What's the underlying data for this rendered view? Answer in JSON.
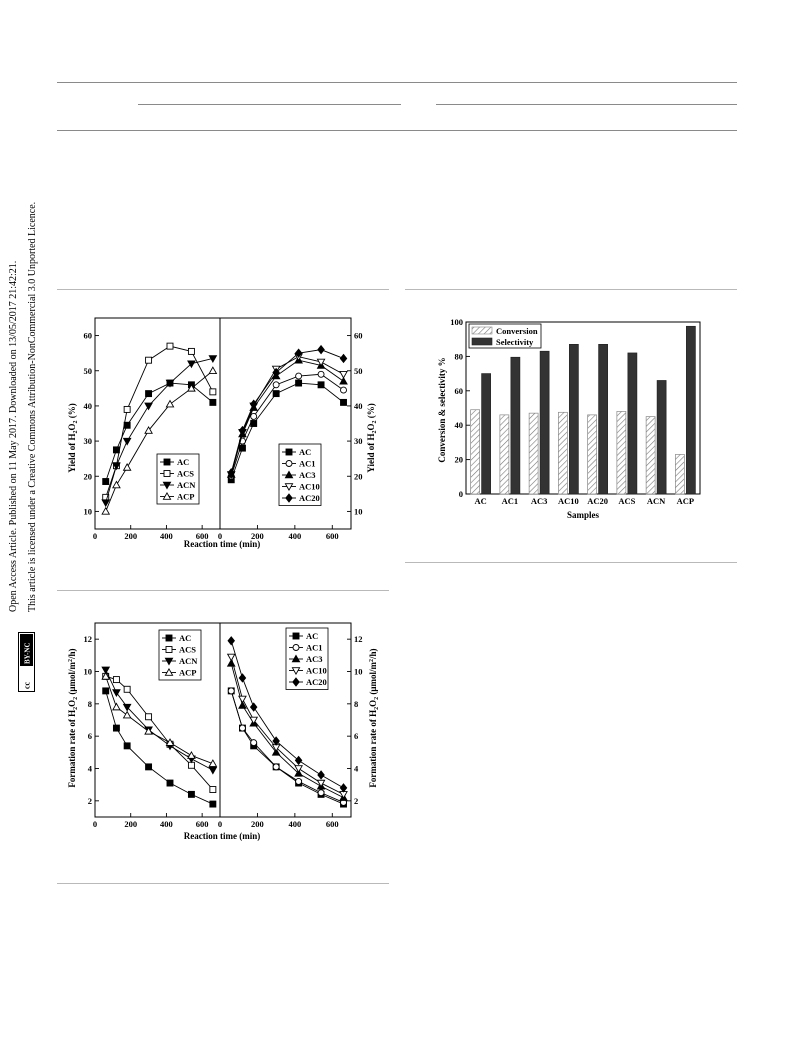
{
  "sidebar": {
    "line1": "Open Access Article. Published on 11 May 2017. Downloaded on 13/05/2017 21:42:21.",
    "line2": "This article is licensed under a Creative Commons Attribution-NonCommercial 3.0 Unported Licence.",
    "badge_cc": "cc",
    "badge_by_nc": "BY-NC"
  },
  "chart_data": [
    {
      "type": "line",
      "id": "yield-left",
      "xlabel": "Reaction time (min)",
      "ylabel": "Yield of H2O2 (%)",
      "xlim": [
        0,
        700
      ],
      "ylim": [
        5,
        65
      ],
      "xticks": [
        0,
        200,
        400,
        600
      ],
      "yticks": [
        10,
        20,
        30,
        40,
        50,
        60
      ],
      "legend_position": "bottom-right",
      "x": [
        60,
        120,
        180,
        300,
        420,
        540,
        660
      ],
      "series": [
        {
          "name": "AC",
          "marker": "square-filled",
          "values": [
            18.5,
            27.5,
            34.5,
            43.5,
            46.5,
            46,
            41
          ]
        },
        {
          "name": "ACS",
          "marker": "square-open",
          "values": [
            14,
            23,
            39,
            53,
            57,
            55.5,
            44
          ]
        },
        {
          "name": "ACN",
          "marker": "tri-down-filled",
          "values": [
            12.5,
            23,
            30,
            40,
            46.5,
            52,
            53.5
          ]
        },
        {
          "name": "ACP",
          "marker": "tri-up-open",
          "values": [
            10,
            17.5,
            22.5,
            33,
            40.5,
            45,
            50
          ]
        }
      ]
    },
    {
      "type": "line",
      "id": "yield-right",
      "xlabel": "Reaction time (min)",
      "ylabel": "Yield of H2O2 (%)",
      "xlim": [
        0,
        700
      ],
      "ylim": [
        5,
        65
      ],
      "xticks": [
        0,
        200,
        400,
        600
      ],
      "yticks": [
        10,
        20,
        30,
        40,
        50,
        60
      ],
      "legend_position": "bottom-right",
      "x": [
        60,
        120,
        180,
        300,
        420,
        540,
        660
      ],
      "series": [
        {
          "name": "AC",
          "marker": "square-filled",
          "values": [
            19,
            28,
            35,
            43.5,
            46.5,
            46,
            41
          ]
        },
        {
          "name": "AC1",
          "marker": "circle-open",
          "values": [
            20,
            30,
            37,
            46,
            48.5,
            49,
            44.5
          ]
        },
        {
          "name": "AC3",
          "marker": "tri-up-filled",
          "values": [
            20.5,
            32,
            39.5,
            48.5,
            53,
            51.5,
            47
          ]
        },
        {
          "name": "AC10",
          "marker": "tri-down-open",
          "values": [
            20.5,
            32.5,
            40,
            50.5,
            54,
            52.5,
            49
          ]
        },
        {
          "name": "AC20",
          "marker": "diamond-filled",
          "values": [
            21,
            33,
            40.5,
            49.5,
            55,
            56,
            53.5
          ]
        }
      ]
    },
    {
      "type": "bar",
      "id": "conversion-selectivity",
      "xlabel": "Samples",
      "ylabel": "Conversion & selectivity %",
      "ylim": [
        0,
        100
      ],
      "yticks": [
        0,
        20,
        40,
        60,
        80,
        100
      ],
      "legend_position": "top-left",
      "categories": [
        "AC",
        "AC1",
        "AC3",
        "AC10",
        "AC20",
        "ACS",
        "ACN",
        "ACP"
      ],
      "series": [
        {
          "name": "Conversion",
          "fill": "hatched",
          "values": [
            49,
            46,
            47,
            47.5,
            46,
            48,
            45,
            23
          ]
        },
        {
          "name": "Selectivity",
          "fill": "#333333",
          "values": [
            70,
            79.5,
            83,
            87,
            87,
            82,
            66,
            97.5
          ]
        }
      ]
    },
    {
      "type": "line",
      "id": "rate-left",
      "xlabel": "Reaction time (min)",
      "ylabel": "Formation rate of H2O2 (μmol/m2/h)",
      "xlim": [
        0,
        700
      ],
      "ylim": [
        1,
        13
      ],
      "xticks": [
        0,
        200,
        400,
        600
      ],
      "yticks": [
        2,
        4,
        6,
        8,
        10,
        12
      ],
      "legend_position": "top-right",
      "x": [
        60,
        120,
        180,
        300,
        420,
        540,
        660
      ],
      "series": [
        {
          "name": "AC",
          "marker": "square-filled",
          "values": [
            8.8,
            6.5,
            5.4,
            4.1,
            3.1,
            2.4,
            1.8
          ]
        },
        {
          "name": "ACS",
          "marker": "square-open",
          "values": [
            9.7,
            9.5,
            8.9,
            7.2,
            5.5,
            4.2,
            2.7
          ]
        },
        {
          "name": "ACN",
          "marker": "tri-down-filled",
          "values": [
            10.1,
            8.7,
            7.8,
            6.4,
            5.4,
            4.6,
            3.9
          ]
        },
        {
          "name": "ACP",
          "marker": "tri-up-open",
          "values": [
            9.7,
            7.8,
            7.3,
            6.3,
            5.6,
            4.8,
            4.3
          ]
        }
      ]
    },
    {
      "type": "line",
      "id": "rate-right",
      "xlabel": "Reaction time (min)",
      "ylabel": "Formation rate of H2O2 (μmol/m2/h)",
      "xlim": [
        0,
        700
      ],
      "ylim": [
        1,
        13
      ],
      "xticks": [
        0,
        200,
        400,
        600
      ],
      "yticks": [
        2,
        4,
        6,
        8,
        10,
        12
      ],
      "legend_position": "top-right",
      "x": [
        60,
        120,
        180,
        300,
        420,
        540,
        660
      ],
      "series": [
        {
          "name": "AC",
          "marker": "square-filled",
          "values": [
            8.8,
            6.5,
            5.4,
            4.1,
            3.1,
            2.4,
            1.8
          ]
        },
        {
          "name": "AC1",
          "marker": "circle-open",
          "values": [
            8.8,
            6.5,
            5.6,
            4.1,
            3.2,
            2.5,
            1.9
          ]
        },
        {
          "name": "AC3",
          "marker": "tri-up-filled",
          "values": [
            10.5,
            7.9,
            6.8,
            5.0,
            3.7,
            2.9,
            2.2
          ]
        },
        {
          "name": "AC10",
          "marker": "tri-down-open",
          "values": [
            10.9,
            8.3,
            7.0,
            5.3,
            4.0,
            3.1,
            2.4
          ]
        },
        {
          "name": "AC20",
          "marker": "diamond-filled",
          "values": [
            11.9,
            9.6,
            7.8,
            5.7,
            4.5,
            3.6,
            2.8
          ]
        }
      ]
    }
  ]
}
